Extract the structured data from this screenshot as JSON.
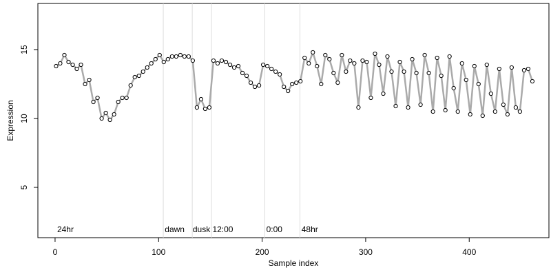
{
  "chart_data": {
    "type": "line",
    "xlabel": "Sample index",
    "ylabel": "Expression",
    "xlim": [
      -16.6,
      477
    ],
    "ylim": [
      1.35,
      18.35
    ],
    "xticks": [
      0,
      100,
      200,
      300,
      400
    ],
    "yticks": [
      5,
      10,
      15
    ],
    "line_color": "#aaaaaa",
    "point_fill": "#ffffff",
    "point_stroke": "#000000",
    "vline_color": "#dddddd",
    "vlines": [
      104.5,
      132.5,
      151,
      202.5,
      236.5
    ],
    "annotations": [
      {
        "text": "24hr",
        "x": 2
      },
      {
        "text": "dawn",
        "x": 106
      },
      {
        "text": "dusk",
        "x": 133
      },
      {
        "text": "12:00",
        "x": 152
      },
      {
        "text": "0:00",
        "x": 204
      },
      {
        "text": "48hr",
        "x": 238
      }
    ],
    "x": [
      1,
      5,
      9,
      13,
      17,
      21,
      25,
      29,
      33,
      37,
      41,
      45,
      49,
      53,
      57,
      61,
      65,
      69,
      73,
      77,
      81,
      85,
      89,
      93,
      97,
      101,
      105,
      109,
      113,
      117,
      121,
      125,
      129,
      133,
      137,
      141,
      145,
      149,
      153,
      157,
      161,
      165,
      169,
      173,
      177,
      181,
      185,
      189,
      193,
      197,
      201,
      205,
      209,
      213,
      217,
      221,
      225,
      229,
      233,
      237,
      241,
      245,
      249,
      253,
      257,
      261,
      265,
      269,
      273,
      277,
      281,
      285,
      289,
      293,
      297,
      301,
      305,
      309,
      313,
      317,
      321,
      325,
      329,
      333,
      337,
      341,
      345,
      349,
      353,
      357,
      361,
      365,
      369,
      373,
      377,
      381,
      385,
      389,
      393,
      397,
      401,
      405,
      409,
      413,
      417,
      421,
      425,
      429,
      433,
      437,
      441,
      445,
      449,
      453,
      457,
      461
    ],
    "values": [
      13.8,
      14.0,
      14.6,
      14.1,
      13.9,
      13.6,
      13.9,
      12.5,
      12.8,
      11.2,
      11.5,
      10.0,
      10.4,
      9.9,
      10.3,
      11.2,
      11.5,
      11.5,
      12.4,
      13.0,
      13.1,
      13.4,
      13.7,
      14.0,
      14.3,
      14.6,
      14.1,
      14.3,
      14.5,
      14.5,
      14.6,
      14.5,
      14.5,
      14.2,
      10.8,
      11.4,
      10.7,
      10.8,
      14.2,
      14.0,
      14.2,
      14.1,
      13.9,
      13.7,
      13.8,
      13.3,
      13.1,
      12.6,
      12.3,
      12.4,
      13.9,
      13.8,
      13.6,
      13.4,
      13.2,
      12.3,
      12.0,
      12.5,
      12.6,
      12.7,
      14.4,
      14.0,
      14.8,
      13.8,
      12.5,
      14.6,
      14.3,
      13.3,
      12.6,
      14.6,
      13.4,
      14.2,
      14.0,
      10.8,
      14.2,
      14.1,
      11.5,
      14.7,
      13.9,
      11.8,
      14.5,
      13.4,
      10.9,
      14.1,
      13.4,
      10.8,
      14.3,
      13.3,
      11.0,
      14.6,
      13.3,
      10.5,
      14.4,
      13.1,
      10.6,
      14.5,
      12.2,
      10.5,
      14.0,
      12.8,
      10.3,
      13.8,
      12.5,
      10.2,
      13.9,
      11.8,
      10.5,
      13.6,
      11.0,
      10.3,
      13.7,
      10.8,
      10.5,
      13.5,
      13.6,
      12.7
    ]
  }
}
